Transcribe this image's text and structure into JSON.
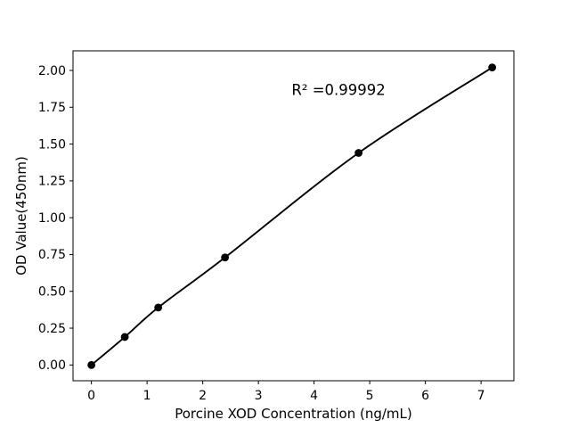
{
  "chart_data": {
    "type": "scatter",
    "xlabel": "Porcine XOD Concentration (ng/mL)",
    "ylabel": "OD Value(450nm)",
    "x": [
      0,
      0.6,
      1.2,
      2.4,
      4.8,
      7.2
    ],
    "y": [
      0.0,
      0.19,
      0.39,
      0.73,
      1.44,
      2.02
    ],
    "fit_line": true,
    "annotation": {
      "text": "R² =0.99992",
      "x": 4.44,
      "y": 1.87
    },
    "xlim": [
      -0.33,
      7.59
    ],
    "ylim": [
      -0.107,
      2.133
    ],
    "xticks": {
      "values": [
        0,
        1,
        2,
        3,
        4,
        5,
        6,
        7
      ],
      "labels": [
        "0",
        "1",
        "2",
        "3",
        "4",
        "5",
        "6",
        "7"
      ]
    },
    "yticks": {
      "values": [
        0,
        0.25,
        0.5,
        0.75,
        1.0,
        1.25,
        1.5,
        1.75,
        2.0
      ],
      "labels": [
        "0.00",
        "0.25",
        "0.50",
        "0.75",
        "1.00",
        "1.25",
        "1.50",
        "1.75",
        "2.00"
      ]
    },
    "grid": false,
    "colors": {
      "line": "#000000",
      "marker": "#000000",
      "axis": "#000000",
      "background": "#ffffff"
    }
  }
}
